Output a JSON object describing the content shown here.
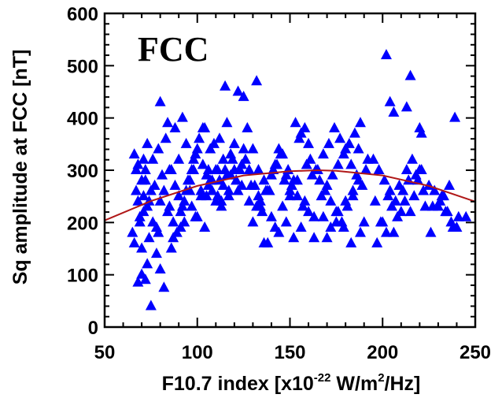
{
  "chart_data": {
    "type": "scatter",
    "panel_label": "FCC",
    "xlabel_parts": {
      "pre": "F10.7 index [x10",
      "sup1": "-22",
      "mid": " W/m",
      "sup2": "2",
      "post": "/Hz]"
    },
    "ylabel": "Sq amplitude at FCC [nT]",
    "xlim": [
      50,
      250
    ],
    "ylim": [
      0,
      600
    ],
    "x_ticks": [
      50,
      100,
      150,
      200,
      250
    ],
    "y_ticks": [
      0,
      100,
      200,
      300,
      400,
      500,
      600
    ],
    "grid": false,
    "marker": "triangle",
    "colors": {
      "points": "#0000ff",
      "fit": "#b01818",
      "axes": "#000000"
    },
    "fit_curve": {
      "type": "quadratic",
      "x": [
        50,
        75,
        100,
        125,
        150,
        165,
        175,
        200,
        225,
        250
      ],
      "y": [
        204,
        241,
        270,
        290,
        298,
        300,
        299,
        290,
        270,
        240
      ]
    },
    "series": [
      {
        "x": [
          75,
          82,
          72,
          68,
          70,
          73,
          78,
          80,
          66,
          65,
          69,
          71,
          74,
          67,
          70,
          72,
          76,
          79,
          83,
          85,
          68,
          71,
          73,
          77,
          81,
          66,
          70,
          74,
          78,
          69,
          72,
          75,
          80,
          84,
          67,
          71,
          76,
          79,
          82,
          68,
          73,
          86,
          88,
          90,
          92,
          95,
          98,
          100,
          103,
          105,
          108,
          110,
          112,
          115,
          118,
          120,
          87,
          91,
          94,
          97,
          101,
          104,
          107,
          111,
          114,
          117,
          121,
          124,
          89,
          93,
          96,
          99,
          102,
          106,
          109,
          113,
          116,
          119,
          122,
          125,
          85,
          88,
          92,
          96,
          100,
          104,
          108,
          112,
          116,
          120,
          124,
          128,
          80,
          84,
          90,
          94,
          98,
          103,
          107,
          111,
          87,
          93,
          97,
          102,
          106,
          110,
          114,
          118,
          86,
          91,
          99,
          105,
          113,
          117,
          121,
          123,
          126,
          130,
          133,
          136,
          139,
          142,
          145,
          148,
          151,
          154,
          157,
          160,
          127,
          131,
          134,
          137,
          140,
          143,
          146,
          149,
          152,
          155,
          158,
          161,
          128,
          132,
          135,
          138,
          141,
          144,
          147,
          150,
          153,
          156,
          159,
          162,
          129,
          133,
          136,
          140,
          144,
          148,
          152,
          156,
          160,
          130,
          134,
          138,
          142,
          146,
          150,
          154,
          158,
          163,
          165,
          168,
          171,
          174,
          177,
          180,
          183,
          186,
          189,
          192,
          164,
          167,
          170,
          173,
          176,
          179,
          182,
          185,
          188,
          191,
          166,
          169,
          172,
          175,
          178,
          181,
          184,
          187,
          190,
          163,
          168,
          172,
          176,
          180,
          184,
          188,
          170,
          175,
          179,
          183,
          187,
          195,
          198,
          201,
          204,
          207,
          210,
          213,
          216,
          219,
          222,
          196,
          199,
          202,
          205,
          208,
          211,
          214,
          217,
          220,
          223,
          197,
          200,
          203,
          206,
          209,
          212,
          215,
          218,
          221,
          225,
          228,
          231,
          234,
          237,
          240,
          245,
          226,
          230,
          233,
          236,
          239,
          227,
          232,
          235,
          238,
          241,
          122,
          115,
          202,
          204,
          215,
          125,
          132,
          213,
          206,
          220,
          221
        ],
        "y": [
          40,
          75,
          90,
          85,
          100,
          120,
          140,
          110,
          160,
          180,
          200,
          220,
          240,
          260,
          280,
          300,
          320,
          340,
          360,
          300,
          310,
          250,
          230,
          270,
          290,
          330,
          150,
          170,
          190,
          210,
          280,
          260,
          240,
          220,
          300,
          320,
          200,
          180,
          260,
          240,
          350,
          300,
          270,
          250,
          230,
          280,
          320,
          340,
          310,
          290,
          260,
          240,
          280,
          300,
          330,
          350,
          200,
          220,
          260,
          300,
          360,
          380,
          340,
          300,
          270,
          250,
          280,
          310,
          180,
          240,
          280,
          330,
          250,
          300,
          350,
          230,
          290,
          320,
          260,
          340,
          230,
          380,
          400,
          260,
          210,
          190,
          280,
          360,
          390,
          300,
          270,
          240,
          430,
          390,
          320,
          350,
          300,
          380,
          280,
          250,
          170,
          200,
          230,
          260,
          270,
          300,
          320,
          290,
          150,
          190,
          210,
          250,
          240,
          260,
          280,
          300,
          320,
          340,
          300,
          280,
          260,
          310,
          330,
          290,
          270,
          250,
          230,
          350,
          380,
          270,
          240,
          260,
          290,
          310,
          330,
          300,
          280,
          360,
          380,
          320,
          300,
          230,
          220,
          260,
          300,
          340,
          280,
          250,
          390,
          370,
          310,
          290,
          270,
          250,
          160,
          210,
          180,
          200,
          170,
          190,
          220,
          200,
          230,
          160,
          190,
          230,
          260,
          280,
          240,
          210,
          300,
          330,
          350,
          380,
          360,
          340,
          310,
          290,
          270,
          320,
          300,
          250,
          270,
          290,
          310,
          330,
          350,
          370,
          390,
          300,
          280,
          260,
          240,
          220,
          200,
          230,
          250,
          280,
          200,
          170,
          210,
          190,
          220,
          240,
          260,
          180,
          170,
          200,
          190,
          160,
          340,
          320,
          300,
          280,
          260,
          240,
          220,
          300,
          320,
          280,
          260,
          240,
          200,
          180,
          230,
          210,
          260,
          280,
          250,
          300,
          230,
          160,
          200,
          250,
          180,
          270,
          240,
          220,
          290,
          300,
          270,
          260,
          240,
          220,
          200,
          190,
          210,
          180,
          230,
          250,
          270,
          400,
          230,
          250,
          220,
          190,
          210,
          450,
          460,
          520,
          430,
          480,
          440,
          470,
          420,
          410,
          380,
          370
        ]
      }
    ]
  }
}
